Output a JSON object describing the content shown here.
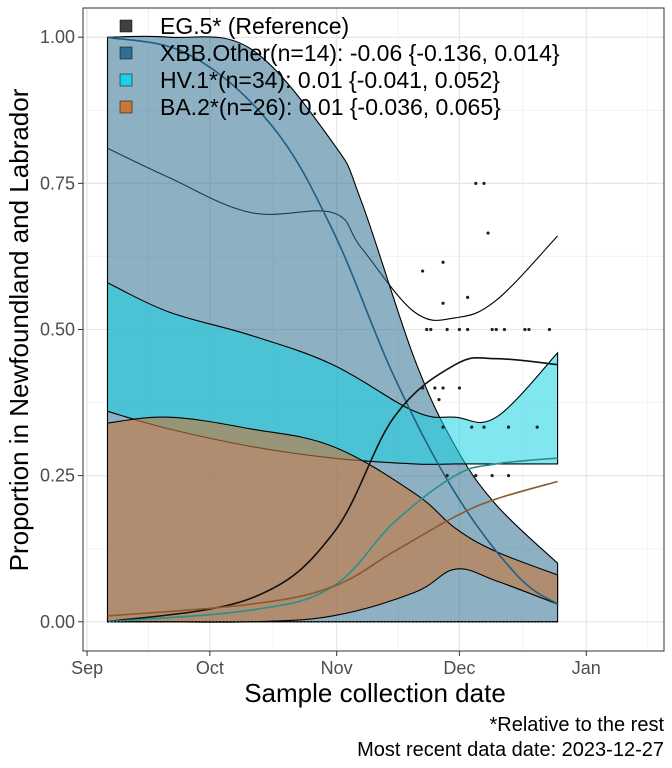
{
  "chart_data": {
    "type": "line",
    "title": "",
    "xlabel": "Sample collection date",
    "ylabel": "Proportion in Newfoundland and Labrador",
    "x_ticks": [
      "Sep",
      "Oct",
      "Nov",
      "Dec",
      "Jan"
    ],
    "x_tick_days": [
      0,
      30,
      61,
      91,
      122
    ],
    "y_ticks": [
      0.0,
      0.25,
      0.5,
      0.75,
      1.0
    ],
    "y_tick_labels": [
      "0.00",
      "0.25",
      "0.50",
      "0.75",
      "1.00"
    ],
    "xlim": [
      -1,
      141
    ],
    "ylim": [
      -0.05,
      1.05
    ],
    "x_unit": "days since Sep 1, 2023",
    "colors": {
      "EG.5": "#4d4d4d",
      "XBB.Other": "#2f6f8f",
      "HV.1": "#1fd0e0",
      "BA.2": "#c8763a"
    },
    "legend": [
      {
        "key": "EG.5",
        "label": "EG.5* (Reference)",
        "color": "#404040"
      },
      {
        "key": "XBB.Other",
        "label": "XBB.Other(n=14): -0.06 {-0.136, 0.014}",
        "color": "#2f6f8f"
      },
      {
        "key": "HV.1",
        "label": "HV.1*(n=34): 0.01 {-0.041, 0.052}",
        "color": "#1fd0e0"
      },
      {
        "key": "BA.2",
        "label": "BA.2*(n=26): 0.01 {-0.036, 0.065}",
        "color": "#c8763a"
      }
    ],
    "band_series": [
      {
        "name": "EG.5",
        "x": [
          5,
          20,
          40,
          60,
          67,
          80,
          90,
          100,
          115
        ],
        "lower": [
          0.81,
          0.76,
          0.7,
          0.7,
          0.64,
          0.53,
          0.52,
          0.55,
          0.66
        ],
        "upper": [
          0.81,
          0.76,
          0.7,
          0.7,
          0.64,
          0.53,
          0.52,
          0.55,
          0.66
        ]
      },
      {
        "name": "XBB.Other",
        "x": [
          5,
          20,
          40,
          60,
          67,
          80,
          90,
          100,
          115
        ],
        "lower": [
          0.0,
          0.0,
          0.0,
          0.0,
          0.0,
          0.0,
          0.0,
          0.0,
          0.0
        ],
        "upper": [
          1.0,
          1.0,
          0.98,
          0.82,
          0.72,
          0.45,
          0.3,
          0.2,
          0.1
        ]
      },
      {
        "name": "HV.1",
        "x": [
          5,
          20,
          40,
          60,
          80,
          90,
          100,
          115
        ],
        "lower": [
          0.36,
          0.33,
          0.3,
          0.28,
          0.27,
          0.27,
          0.27,
          0.27
        ],
        "upper": [
          0.58,
          0.53,
          0.49,
          0.44,
          0.36,
          0.35,
          0.35,
          0.46
        ]
      },
      {
        "name": "BA.2",
        "x": [
          5,
          20,
          40,
          60,
          80,
          90,
          100,
          115
        ],
        "lower": [
          0.0,
          0.0,
          0.0,
          0.01,
          0.05,
          0.09,
          0.07,
          0.03
        ],
        "upper": [
          0.34,
          0.35,
          0.33,
          0.3,
          0.22,
          0.16,
          0.12,
          0.08
        ]
      }
    ],
    "fit_lines": [
      {
        "name": "XBB.Other",
        "x": [
          5,
          25,
          45,
          60,
          75,
          90,
          105,
          115
        ],
        "y": [
          1.0,
          0.97,
          0.85,
          0.67,
          0.42,
          0.22,
          0.08,
          0.03
        ]
      },
      {
        "name": "EG.5",
        "x": [
          5,
          40,
          60,
          75,
          90,
          100,
          115
        ],
        "y": [
          0.0,
          0.04,
          0.15,
          0.35,
          0.44,
          0.45,
          0.44
        ]
      },
      {
        "name": "HV.1",
        "x": [
          5,
          40,
          60,
          75,
          90,
          100,
          115
        ],
        "y": [
          0.0,
          0.02,
          0.06,
          0.17,
          0.25,
          0.27,
          0.28
        ]
      },
      {
        "name": "BA.2",
        "x": [
          5,
          40,
          60,
          75,
          90,
          100,
          115
        ],
        "y": [
          0.01,
          0.03,
          0.06,
          0.12,
          0.18,
          0.21,
          0.24
        ]
      }
    ],
    "observed_points": [
      {
        "x": 82,
        "y": 0.6
      },
      {
        "x": 87,
        "y": 0.615
      },
      {
        "x": 87,
        "y": 0.545
      },
      {
        "x": 93,
        "y": 0.555
      },
      {
        "x": 95,
        "y": 0.75
      },
      {
        "x": 97,
        "y": 0.75
      },
      {
        "x": 98,
        "y": 0.665
      },
      {
        "x": 83,
        "y": 0.5
      },
      {
        "x": 84,
        "y": 0.5
      },
      {
        "x": 88,
        "y": 0.5
      },
      {
        "x": 91,
        "y": 0.5
      },
      {
        "x": 93,
        "y": 0.5
      },
      {
        "x": 99,
        "y": 0.5
      },
      {
        "x": 100,
        "y": 0.5
      },
      {
        "x": 102,
        "y": 0.5
      },
      {
        "x": 107,
        "y": 0.5
      },
      {
        "x": 108,
        "y": 0.5
      },
      {
        "x": 113,
        "y": 0.5
      },
      {
        "x": 82,
        "y": 0.4
      },
      {
        "x": 85,
        "y": 0.4
      },
      {
        "x": 86,
        "y": 0.38
      },
      {
        "x": 87,
        "y": 0.4
      },
      {
        "x": 91,
        "y": 0.4
      },
      {
        "x": 87,
        "y": 0.333
      },
      {
        "x": 94,
        "y": 0.333
      },
      {
        "x": 97,
        "y": 0.333
      },
      {
        "x": 103,
        "y": 0.333
      },
      {
        "x": 110,
        "y": 0.333
      },
      {
        "x": 88,
        "y": 0.25
      },
      {
        "x": 95,
        "y": 0.25
      },
      {
        "x": 99,
        "y": 0.25
      },
      {
        "x": 103,
        "y": 0.25
      }
    ]
  },
  "caption": {
    "line1": "*Relative to the rest",
    "line2": "Most recent data date: 2023-12-27"
  }
}
